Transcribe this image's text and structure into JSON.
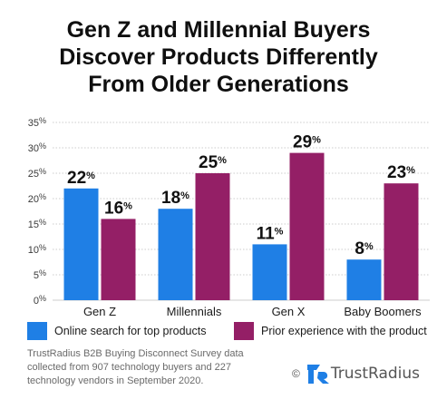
{
  "title_lines": [
    "Gen Z and Millennial Buyers",
    "Discover Products Differently",
    "From Older Generations"
  ],
  "legend": {
    "online": "Online search for top products",
    "prior": "Prior experience with the product"
  },
  "footnote_lines": [
    "TrustRadius B2B Buying Disconnect Survey data",
    "collected from 907 technology buyers and 227",
    "technology vendors in September 2020."
  ],
  "brand": {
    "copyright": "©",
    "name": "TrustRadius"
  },
  "colors": {
    "online": "#1f7fe5",
    "prior": "#941f66",
    "grid": "#cccccc",
    "brand": "#1f7fe5"
  },
  "chart_data": {
    "type": "bar",
    "categories": [
      "Gen Z",
      "Millennials",
      "Gen X",
      "Baby Boomers"
    ],
    "series": [
      {
        "name": "Online search for top products",
        "values": [
          22,
          18,
          11,
          8
        ]
      },
      {
        "name": "Prior experience with the product",
        "values": [
          16,
          25,
          29,
          23
        ]
      }
    ],
    "ylim": [
      0,
      35
    ],
    "yticks": [
      0,
      5,
      10,
      15,
      20,
      25,
      30,
      35
    ],
    "tick_suffix": "%",
    "grid": true,
    "legend_position": "bottom"
  }
}
